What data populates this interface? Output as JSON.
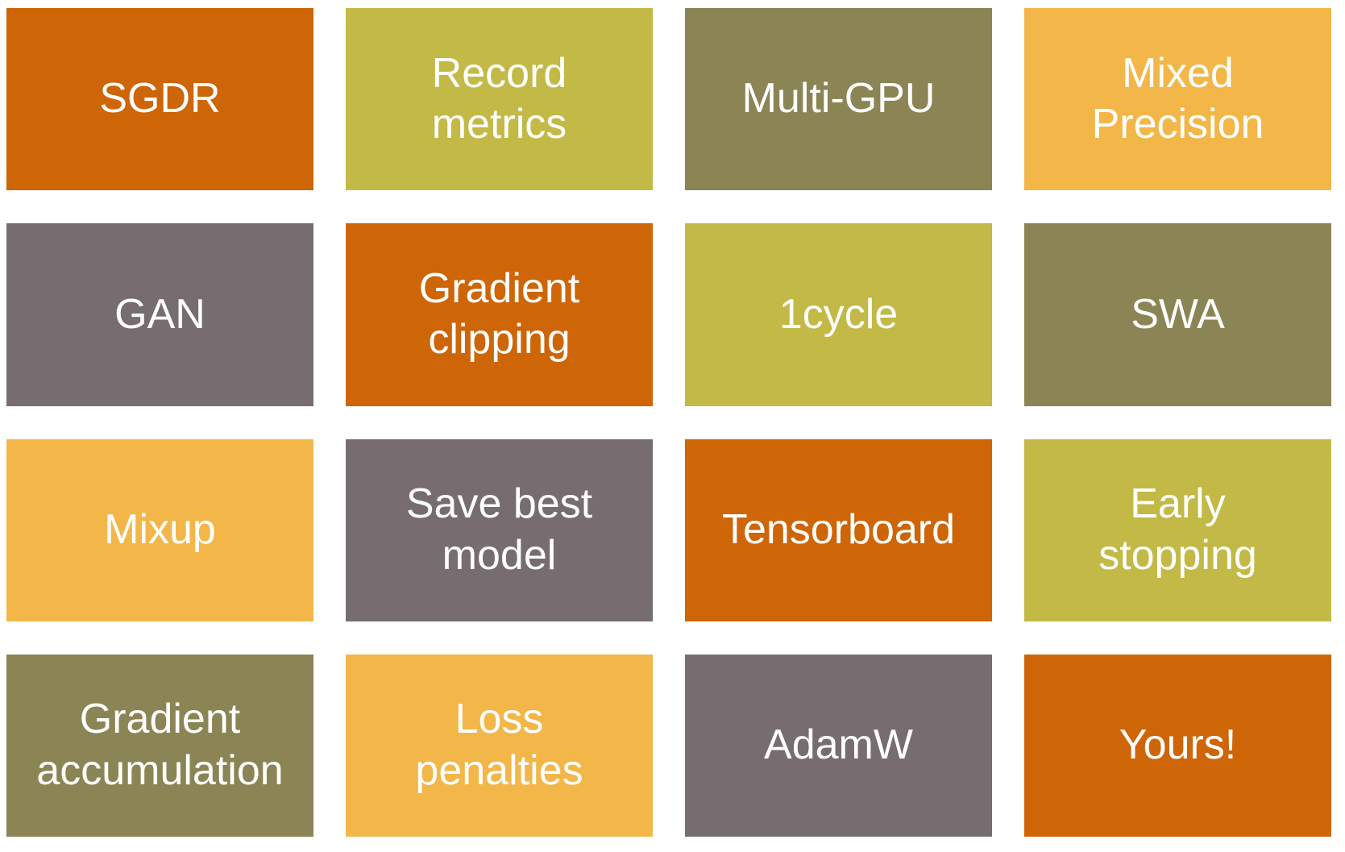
{
  "slide": {
    "background": "#FFFFFF",
    "text_color": "#FFFFFF",
    "palette": {
      "orange": "#CE6506",
      "olive": "#C2B946",
      "khaki": "#8B8454",
      "gold": "#F2B748",
      "gray": "#776D71"
    },
    "grid": {
      "rows": 4,
      "columns": 4
    },
    "tiles": [
      {
        "label": "SGDR",
        "color": "orange"
      },
      {
        "label": "Record metrics",
        "color": "olive"
      },
      {
        "label": "Multi-GPU",
        "color": "khaki"
      },
      {
        "label": "Mixed Precision",
        "color": "gold"
      },
      {
        "label": "GAN",
        "color": "gray"
      },
      {
        "label": "Gradient clipping",
        "color": "orange"
      },
      {
        "label": "1cycle",
        "color": "olive"
      },
      {
        "label": "SWA",
        "color": "khaki"
      },
      {
        "label": "Mixup",
        "color": "gold"
      },
      {
        "label": "Save best model",
        "color": "gray"
      },
      {
        "label": "Tensorboard",
        "color": "orange"
      },
      {
        "label": "Early stopping",
        "color": "olive"
      },
      {
        "label": "Gradient accumulation",
        "color": "khaki"
      },
      {
        "label": "Loss penalties",
        "color": "gold"
      },
      {
        "label": "AdamW",
        "color": "gray"
      },
      {
        "label": "Yours!",
        "color": "orange"
      }
    ]
  }
}
